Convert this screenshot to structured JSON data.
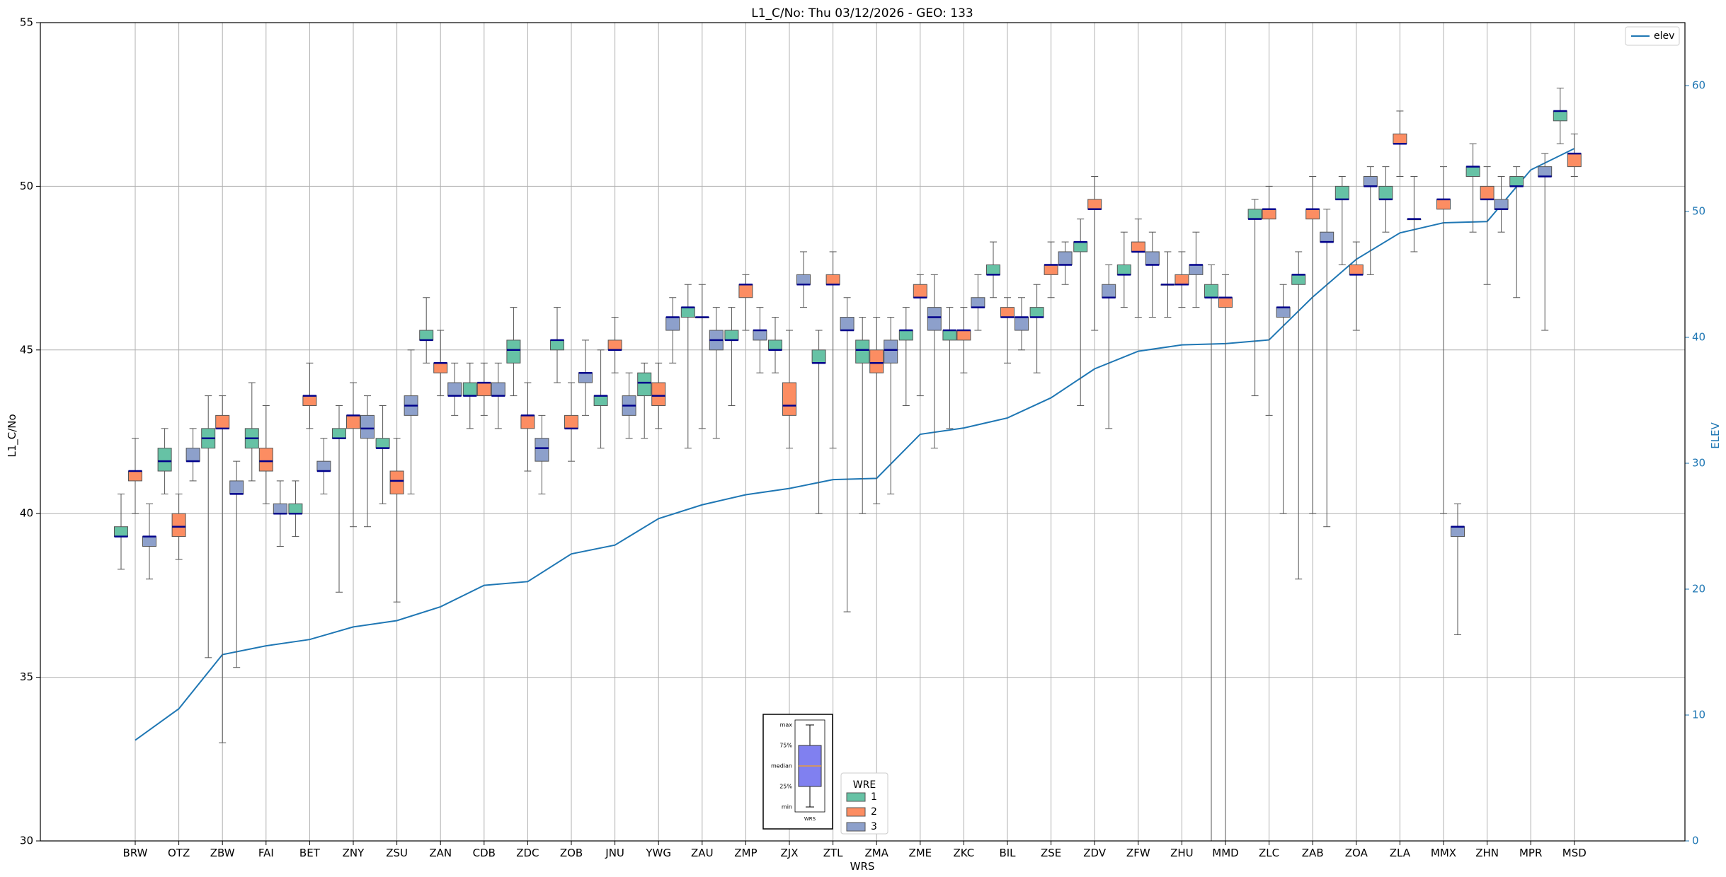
{
  "chart_data": {
    "type": "box",
    "title": "L1_C/No: Thu 03/12/2026 - GEO: 133",
    "xlabel": "WRS",
    "ylabel": "L1_C/No",
    "y2label": "ELEV",
    "ylim": [
      30,
      55
    ],
    "y2lim": [
      0,
      65
    ],
    "yticks": [
      30,
      35,
      40,
      45,
      50,
      55
    ],
    "y2ticks": [
      0,
      10,
      20,
      30,
      40,
      50,
      60
    ],
    "grid": true,
    "categories": [
      "BRW",
      "OTZ",
      "ZBW",
      "FAI",
      "BET",
      "ZNY",
      "ZSU",
      "ZAN",
      "CDB",
      "ZDC",
      "ZOB",
      "JNU",
      "YWG",
      "ZAU",
      "ZMP",
      "ZJX",
      "ZTL",
      "ZMA",
      "ZME",
      "ZKC",
      "BIL",
      "ZSE",
      "ZDV",
      "ZFW",
      "ZHU",
      "MMD",
      "ZLC",
      "ZAB",
      "ZOA",
      "ZLA",
      "MMX",
      "ZHN",
      "MPR",
      "MSD"
    ],
    "colors": {
      "1": "#66c2a5",
      "2": "#fc8d62",
      "3": "#8da0cb",
      "median": "#00008b",
      "line": "#1f77b4",
      "whisker": "#555555"
    },
    "series": [
      {
        "name": "1",
        "boxes": [
          [
            38.3,
            39.3,
            39.3,
            39.6,
            40.6
          ],
          [
            40.6,
            41.3,
            41.6,
            42.0,
            42.6
          ],
          [
            35.6,
            42.0,
            42.3,
            42.6,
            43.6
          ],
          [
            41.0,
            42.0,
            42.3,
            42.6,
            44.0
          ],
          [
            39.3,
            40.0,
            40.0,
            40.3,
            41.0
          ],
          [
            37.6,
            42.3,
            42.3,
            42.6,
            43.3
          ],
          [
            40.3,
            42.0,
            42.0,
            42.3,
            43.3
          ],
          [
            44.6,
            45.3,
            45.3,
            45.6,
            46.6
          ],
          [
            42.6,
            43.6,
            43.6,
            44.0,
            44.6
          ],
          [
            43.6,
            44.6,
            45.0,
            45.3,
            46.3
          ],
          [
            44.0,
            45.0,
            45.3,
            45.3,
            46.3
          ],
          [
            42.0,
            43.3,
            43.6,
            43.6,
            45.0
          ],
          [
            42.3,
            43.6,
            44.0,
            44.3,
            44.6
          ],
          [
            42.0,
            46.0,
            46.3,
            46.3,
            47.0
          ],
          [
            43.3,
            45.3,
            45.3,
            45.6,
            46.3
          ],
          [
            44.3,
            45.0,
            45.0,
            45.3,
            46.0
          ],
          [
            40.0,
            44.6,
            44.6,
            45.0,
            45.6
          ],
          [
            40.0,
            44.6,
            45.0,
            45.3,
            46.0
          ],
          [
            43.3,
            45.3,
            45.6,
            45.6,
            46.3
          ],
          [
            42.6,
            45.3,
            45.6,
            45.6,
            46.3
          ],
          [
            46.6,
            47.3,
            47.3,
            47.6,
            48.3
          ],
          [
            44.3,
            46.0,
            46.0,
            46.3,
            47.0
          ],
          [
            43.3,
            48.0,
            48.3,
            48.3,
            49.0
          ],
          [
            46.3,
            47.3,
            47.3,
            47.6,
            48.6
          ],
          [
            46.0,
            47.0,
            47.0,
            47.0,
            48.0
          ],
          [
            30.0,
            46.6,
            46.6,
            47.0,
            47.6
          ],
          [
            43.6,
            49.0,
            49.0,
            49.3,
            49.6
          ],
          [
            38.0,
            47.0,
            47.3,
            47.3,
            48.0
          ],
          [
            47.6,
            49.6,
            49.6,
            50.0,
            50.3
          ],
          [
            48.6,
            49.6,
            49.6,
            50.0,
            50.6
          ],
          [
            null,
            null,
            null,
            null,
            null
          ],
          [
            48.6,
            50.3,
            50.6,
            50.6,
            51.3
          ],
          [
            46.6,
            50.0,
            50.0,
            50.3,
            50.6
          ],
          [
            51.3,
            52.0,
            52.3,
            52.3,
            53.0
          ]
        ]
      },
      {
        "name": "2",
        "boxes": [
          [
            40.0,
            41.0,
            41.3,
            41.3,
            42.3
          ],
          [
            38.6,
            39.3,
            39.6,
            40.0,
            40.6
          ],
          [
            33.0,
            42.6,
            42.6,
            43.0,
            43.6
          ],
          [
            40.3,
            41.3,
            41.6,
            42.0,
            43.3
          ],
          [
            42.6,
            43.3,
            43.6,
            43.6,
            44.6
          ],
          [
            39.6,
            42.6,
            43.0,
            43.0,
            44.0
          ],
          [
            37.3,
            40.6,
            41.0,
            41.3,
            42.3
          ],
          [
            43.6,
            44.3,
            44.6,
            44.6,
            45.6
          ],
          [
            43.0,
            43.6,
            44.0,
            44.0,
            44.6
          ],
          [
            41.3,
            42.6,
            43.0,
            43.0,
            44.0
          ],
          [
            41.6,
            42.6,
            42.6,
            43.0,
            44.0
          ],
          [
            44.3,
            45.0,
            45.0,
            45.3,
            46.0
          ],
          [
            42.6,
            43.3,
            43.6,
            44.0,
            44.6
          ],
          [
            42.6,
            46.0,
            46.0,
            46.0,
            47.0
          ],
          [
            45.6,
            46.6,
            47.0,
            47.0,
            47.3
          ],
          [
            42.0,
            43.0,
            43.3,
            44.0,
            45.6
          ],
          [
            42.0,
            47.0,
            47.0,
            47.3,
            48.0
          ],
          [
            40.3,
            44.3,
            44.6,
            45.0,
            46.0
          ],
          [
            43.6,
            46.6,
            46.6,
            47.0,
            47.3
          ],
          [
            44.3,
            45.3,
            45.6,
            45.6,
            46.3
          ],
          [
            44.6,
            46.0,
            46.0,
            46.3,
            46.6
          ],
          [
            46.6,
            47.3,
            47.6,
            47.6,
            48.3
          ],
          [
            45.6,
            49.3,
            49.3,
            49.6,
            50.3
          ],
          [
            46.0,
            48.0,
            48.0,
            48.3,
            49.0
          ],
          [
            46.3,
            47.0,
            47.0,
            47.3,
            48.0
          ],
          [
            30.0,
            46.3,
            46.6,
            46.6,
            47.3
          ],
          [
            43.0,
            49.0,
            49.3,
            49.3,
            50.0
          ],
          [
            40.0,
            49.0,
            49.3,
            49.3,
            50.3
          ],
          [
            45.6,
            47.3,
            47.3,
            47.6,
            48.3
          ],
          [
            50.3,
            51.3,
            51.3,
            51.6,
            52.3
          ],
          [
            40.0,
            49.3,
            49.6,
            49.6,
            50.6
          ],
          [
            47.0,
            49.6,
            49.6,
            50.0,
            50.6
          ],
          [
            null,
            null,
            null,
            null,
            null
          ],
          [
            50.3,
            50.6,
            51.0,
            51.0,
            51.6
          ]
        ]
      },
      {
        "name": "3",
        "boxes": [
          [
            38.0,
            39.0,
            39.3,
            39.3,
            40.3
          ],
          [
            41.0,
            41.6,
            41.6,
            42.0,
            42.6
          ],
          [
            35.3,
            40.6,
            40.6,
            41.0,
            41.6
          ],
          [
            39.0,
            40.0,
            40.0,
            40.3,
            41.0
          ],
          [
            40.6,
            41.3,
            41.3,
            41.6,
            42.3
          ],
          [
            39.6,
            42.3,
            42.6,
            43.0,
            43.6
          ],
          [
            40.6,
            43.0,
            43.3,
            43.6,
            45.0
          ],
          [
            43.0,
            43.6,
            43.6,
            44.0,
            44.6
          ],
          [
            42.6,
            43.6,
            43.6,
            44.0,
            44.6
          ],
          [
            40.6,
            41.6,
            42.0,
            42.3,
            43.0
          ],
          [
            43.0,
            44.0,
            44.3,
            44.3,
            45.3
          ],
          [
            42.3,
            43.0,
            43.3,
            43.6,
            44.3
          ],
          [
            44.6,
            45.6,
            46.0,
            46.0,
            46.6
          ],
          [
            42.3,
            45.0,
            45.3,
            45.6,
            46.3
          ],
          [
            44.3,
            45.3,
            45.6,
            45.6,
            46.3
          ],
          [
            46.3,
            47.0,
            47.0,
            47.3,
            48.0
          ],
          [
            37.0,
            45.6,
            45.6,
            46.0,
            46.6
          ],
          [
            40.6,
            44.6,
            45.0,
            45.3,
            46.0
          ],
          [
            42.0,
            45.6,
            46.0,
            46.3,
            47.3
          ],
          [
            45.6,
            46.3,
            46.3,
            46.6,
            47.3
          ],
          [
            45.0,
            45.6,
            46.0,
            46.0,
            46.6
          ],
          [
            47.0,
            47.6,
            47.6,
            48.0,
            48.3
          ],
          [
            42.6,
            46.6,
            46.6,
            47.0,
            47.6
          ],
          [
            46.0,
            47.6,
            47.6,
            48.0,
            48.6
          ],
          [
            46.3,
            47.3,
            47.6,
            47.6,
            48.6
          ],
          [
            null,
            null,
            null,
            null,
            null
          ],
          [
            40.0,
            46.0,
            46.3,
            46.3,
            47.0
          ],
          [
            39.6,
            48.3,
            48.3,
            48.6,
            49.3
          ],
          [
            47.3,
            50.0,
            50.0,
            50.3,
            50.6
          ],
          [
            48.0,
            49.0,
            49.0,
            49.0,
            50.3
          ],
          [
            36.3,
            39.3,
            39.6,
            39.6,
            40.3
          ],
          [
            48.6,
            49.3,
            49.3,
            49.6,
            50.3
          ],
          [
            45.6,
            50.3,
            50.3,
            50.6,
            51.0
          ],
          [
            null,
            null,
            null,
            null,
            null
          ]
        ]
      },
      {
        "name": "elev",
        "type": "line",
        "axis": "right",
        "values": [
          8,
          10.5,
          14.8,
          15.5,
          16,
          17,
          17.5,
          18.6,
          20.3,
          20.6,
          22.8,
          23.5,
          25.6,
          26.7,
          27.5,
          28,
          28.7,
          28.8,
          32.3,
          32.8,
          33.6,
          35.2,
          37.5,
          38.9,
          39.4,
          39.5,
          39.8,
          43.2,
          46.2,
          48.3,
          49.1,
          49.2,
          53.3,
          55.0
        ]
      }
    ],
    "legends": [
      {
        "title": "WRE",
        "entries": [
          "1",
          "2",
          "3"
        ],
        "placement": "bottom-center"
      },
      {
        "entries": [
          "elev"
        ],
        "placement": "top-right"
      }
    ],
    "inset": {
      "labels": [
        "max",
        "75%",
        "median",
        "25%",
        "min"
      ],
      "caption": "WRS",
      "placement": "bottom-center"
    }
  }
}
